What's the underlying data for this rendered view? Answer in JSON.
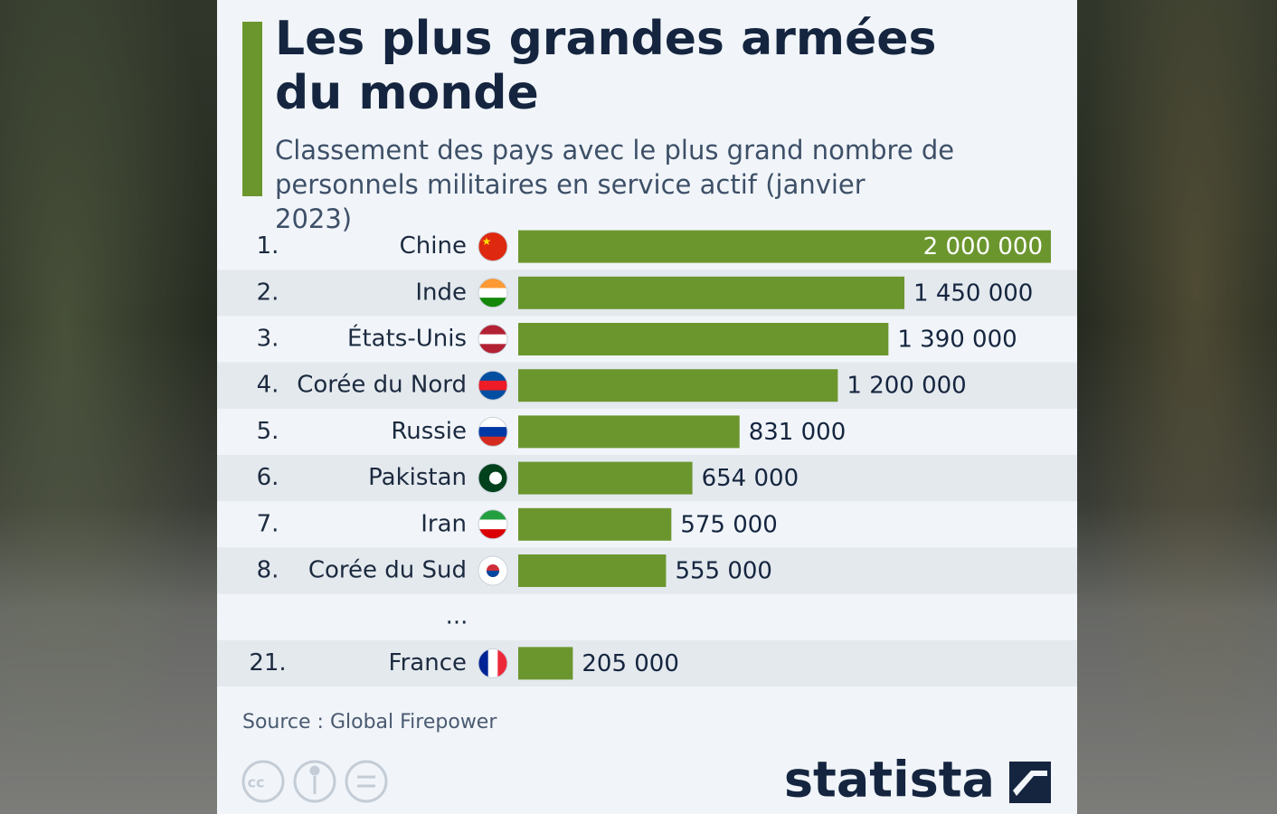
{
  "chart_data": {
    "type": "bar",
    "title": "Les plus grandes armées du monde",
    "subtitle": "Classement des pays avec le plus grand nombre de personnels militaires en service actif (janvier 2023)",
    "ranks": [
      "1.",
      "2.",
      "3.",
      "4.",
      "5.",
      "6.",
      "7.",
      "8.",
      "21."
    ],
    "categories": [
      "Chine",
      "Inde",
      "États-Unis",
      "Corée du Nord",
      "Russie",
      "Pakistan",
      "Iran",
      "Corée du Sud",
      "France"
    ],
    "values": [
      2000000,
      1450000,
      1390000,
      1200000,
      831000,
      654000,
      575000,
      555000,
      205000
    ],
    "value_labels": [
      "2 000 000",
      "1 450 000",
      "1 390 000",
      "1 200 000",
      "831 000",
      "654 000",
      "575 000",
      "555 000",
      "205 000"
    ],
    "ellipsis": "...",
    "color": "#6b962e",
    "source": "Source : Global Firepower",
    "brand": "statista"
  }
}
